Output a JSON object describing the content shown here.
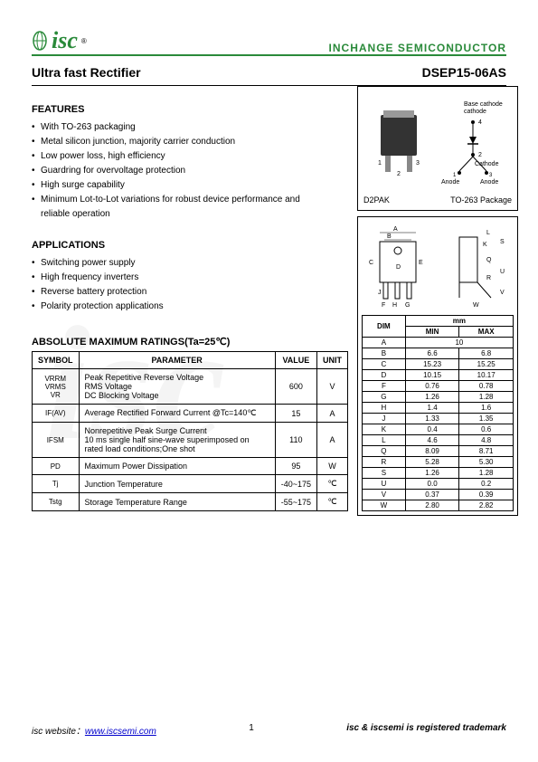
{
  "header": {
    "logo_text": "isc",
    "brand": "INCHANGE SEMICONDUCTOR",
    "logo_reg": "®"
  },
  "title": {
    "product_type": "Ultra fast Rectifier",
    "part_number": "DSEP15-06AS"
  },
  "features": {
    "heading": "FEATURES",
    "items": [
      "With TO-263 packaging",
      "Metal silicon junction, majority carrier conduction",
      "Low power loss, high efficiency",
      "Guardring for overvoltage protection",
      "High surge capability",
      "Minimum Lot-to-Lot variations for robust device performance and reliable operation"
    ]
  },
  "applications": {
    "heading": "APPLICATIONS",
    "items": [
      "Switching power supply",
      "High frequency inverters",
      "Reverse battery protection",
      "Polarity protection applications"
    ]
  },
  "package": {
    "d2pak_label": "D2PAK",
    "pkg_name": "TO-263 Package",
    "pin_labels": {
      "base": "Base cathode",
      "cathode": "Cathode",
      "anode": "Anode"
    },
    "pins": [
      "1",
      "2",
      "3",
      "4"
    ]
  },
  "drawing_labels": [
    "A",
    "B",
    "C",
    "D",
    "E",
    "F",
    "G",
    "H",
    "J",
    "K",
    "L",
    "Q",
    "R",
    "S",
    "U",
    "V",
    "W"
  ],
  "dimensions": {
    "unit": "mm",
    "header": {
      "dim": "DIM",
      "min": "MIN",
      "max": "MAX"
    },
    "rows": [
      {
        "dim": "A",
        "min": "10",
        "max": ""
      },
      {
        "dim": "B",
        "min": "6.6",
        "max": "6.8"
      },
      {
        "dim": "C",
        "min": "15.23",
        "max": "15.25"
      },
      {
        "dim": "D",
        "min": "10.15",
        "max": "10.17"
      },
      {
        "dim": "F",
        "min": "0.76",
        "max": "0.78"
      },
      {
        "dim": "G",
        "min": "1.26",
        "max": "1.28"
      },
      {
        "dim": "H",
        "min": "1.4",
        "max": "1.6"
      },
      {
        "dim": "J",
        "min": "1.33",
        "max": "1.35"
      },
      {
        "dim": "K",
        "min": "0.4",
        "max": "0.6"
      },
      {
        "dim": "L",
        "min": "4.6",
        "max": "4.8"
      },
      {
        "dim": "Q",
        "min": "8.09",
        "max": "8.71"
      },
      {
        "dim": "R",
        "min": "5.28",
        "max": "5.30"
      },
      {
        "dim": "S",
        "min": "1.26",
        "max": "1.28"
      },
      {
        "dim": "U",
        "min": "0.0",
        "max": "0.2"
      },
      {
        "dim": "V",
        "min": "0.37",
        "max": "0.39"
      },
      {
        "dim": "W",
        "min": "2.80",
        "max": "2.82"
      }
    ]
  },
  "ratings": {
    "heading": "ABSOLUTE MAXIMUM RATINGS(Ta=25℃)",
    "columns": {
      "symbol": "SYMBOL",
      "parameter": "PARAMETER",
      "value": "VALUE",
      "unit": "UNIT"
    },
    "rows": [
      {
        "symbol": "VRRM\nVRMS\nVR",
        "parameter": "Peak Repetitive Reverse Voltage\nRMS Voltage\nDC Blocking Voltage",
        "value": "600",
        "unit": "V"
      },
      {
        "symbol": "IF(AV)",
        "parameter": "Average Rectified Forward Current @Tc=140℃",
        "value": "15",
        "unit": "A"
      },
      {
        "symbol": "IFSM",
        "parameter": "Nonrepetitive Peak Surge Current\n10 ms single half sine-wave superimposed on rated load conditions;One shot",
        "value": "110",
        "unit": "A"
      },
      {
        "symbol": "PD",
        "parameter": "Maximum Power Dissipation",
        "value": "95",
        "unit": "W"
      },
      {
        "symbol": "Tj",
        "parameter": "Junction Temperature",
        "value": "-40~175",
        "unit": "℃"
      },
      {
        "symbol": "Tstg",
        "parameter": "Storage Temperature Range",
        "value": "-55~175",
        "unit": "℃"
      }
    ]
  },
  "footer": {
    "website_label": "isc website：",
    "website_url": "www.iscsemi.com",
    "page": "1",
    "trademark": "isc & iscsemi is registered trademark"
  },
  "colors": {
    "green": "#2a8a3a",
    "border": "#000000",
    "link": "#0000cc"
  }
}
